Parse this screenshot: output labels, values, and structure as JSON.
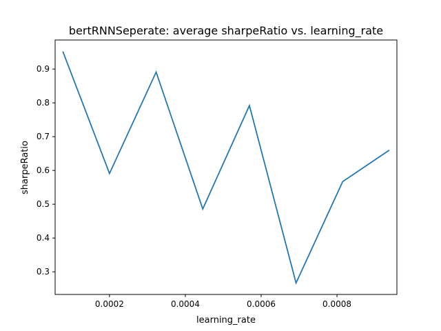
{
  "chart_data": {
    "type": "line",
    "title": "bertRNNSeperate: average sharpeRatio vs. learning_rate",
    "xlabel": "learning_rate",
    "ylabel": "sharpeRatio",
    "xlim": [
      5.66e-05,
      0.000958
    ],
    "ylim": [
      0.233,
      0.986
    ],
    "x_ticks": [
      {
        "value": 0.0002,
        "label": "0.0002"
      },
      {
        "value": 0.0004,
        "label": "0.0004"
      },
      {
        "value": 0.0006,
        "label": "0.0006"
      },
      {
        "value": 0.0008,
        "label": "0.0008"
      }
    ],
    "y_ticks": [
      {
        "value": 0.3,
        "label": "0.3"
      },
      {
        "value": 0.4,
        "label": "0.4"
      },
      {
        "value": 0.5,
        "label": "0.5"
      },
      {
        "value": 0.6,
        "label": "0.6"
      },
      {
        "value": 0.7,
        "label": "0.7"
      },
      {
        "value": 0.8,
        "label": "0.8"
      },
      {
        "value": 0.9,
        "label": "0.9"
      }
    ],
    "grid": false,
    "line_color": "#1f77b4",
    "series": [
      {
        "x": [
          7.7e-05,
          0.0002,
          0.000323,
          0.000446,
          0.000569,
          0.000692,
          0.000815,
          0.000938
        ],
        "y": [
          0.952,
          0.591,
          0.891,
          0.486,
          0.792,
          0.267,
          0.567,
          0.66
        ]
      }
    ]
  }
}
